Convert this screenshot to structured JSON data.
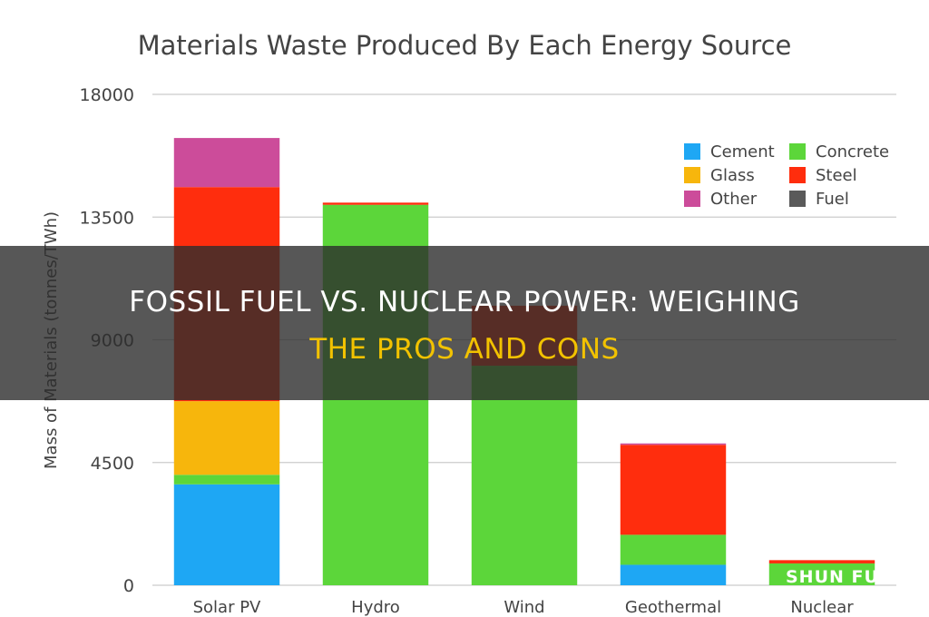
{
  "chart_data": {
    "type": "bar",
    "stacked": true,
    "title": "Materials Waste Produced By Each Energy Source",
    "ylabel": "Mass of Materials (tonnes/TWh)",
    "xlabel": "",
    "ylim": [
      0,
      18000
    ],
    "yticks": [
      0,
      4500,
      9000,
      13500,
      18000
    ],
    "grid": true,
    "legend_position": "top-right",
    "categories": [
      "Solar PV",
      "Hydro",
      "Wind",
      "Geothermal",
      "Nuclear"
    ],
    "series": [
      {
        "name": "Cement",
        "color": "#1ea7f4",
        "values": [
          3700,
          0,
          0,
          750,
          0
        ]
      },
      {
        "name": "Concrete",
        "color": "#5cd63a",
        "values": [
          350,
          13950,
          8050,
          1100,
          800
        ]
      },
      {
        "name": "Glass",
        "color": "#f7b60c",
        "values": [
          2700,
          0,
          0,
          0,
          0
        ]
      },
      {
        "name": "Steel",
        "color": "#ff2d0d",
        "values": [
          7850,
          80,
          2200,
          3300,
          120
        ]
      },
      {
        "name": "Other",
        "color": "#cc4c9a",
        "values": [
          1800,
          0,
          0,
          50,
          0
        ]
      },
      {
        "name": "Fuel",
        "color": "#5a5a5a",
        "values": [
          0,
          0,
          0,
          0,
          0
        ]
      }
    ]
  },
  "banner": {
    "line1": "FOSSIL FUEL VS. NUCLEAR POWER: WEIGHING",
    "line2": "THE PROS AND CONS"
  },
  "watermark": "SHUN FU"
}
